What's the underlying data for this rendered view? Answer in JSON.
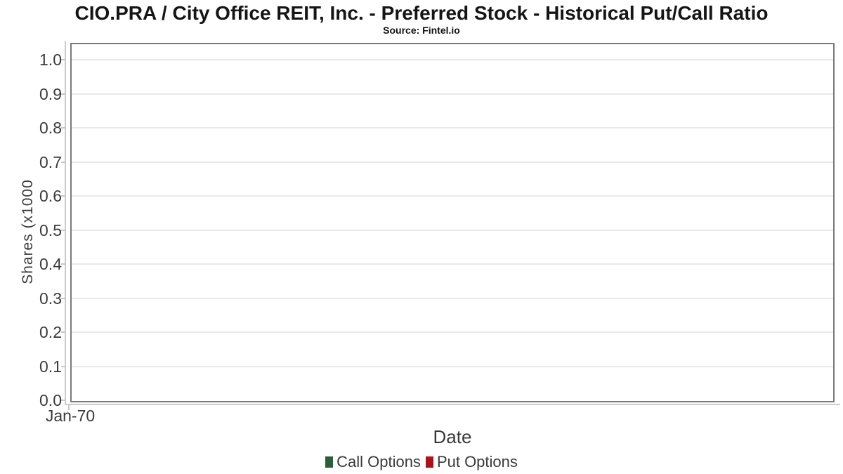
{
  "header": {
    "title": "CIO.PRA / City Office REIT, Inc. - Preferred Stock - Historical Put/Call Ratio",
    "subtitle": "Source: Fintel.io"
  },
  "chart_data": {
    "type": "line",
    "title": "CIO.PRA / City Office REIT, Inc. - Preferred Stock - Historical Put/Call Ratio",
    "subtitle": "Source: Fintel.io",
    "xlabel": "Date",
    "ylabel": "Shares (x1000",
    "ylim": [
      0.0,
      1.05
    ],
    "yticks": [
      0.0,
      0.1,
      0.2,
      0.3,
      0.4,
      0.5,
      0.6,
      0.7,
      0.8,
      0.9,
      1.0
    ],
    "ytick_labels": [
      "0.0",
      "0.1",
      "0.2",
      "0.3",
      "0.4",
      "0.5",
      "0.6",
      "0.7",
      "0.8",
      "0.9",
      "1.0"
    ],
    "xtick_labels": [
      "Jan-70"
    ],
    "grid": true,
    "legend_position": "bottom",
    "series": [
      {
        "name": "Call Options",
        "color": "#2a5f38",
        "values": []
      },
      {
        "name": "Put Options",
        "color": "#ae1116",
        "values": []
      }
    ]
  },
  "colors": {
    "call_options": "#2a5f38",
    "put_options": "#ae1116",
    "plot_border": "#7a7a7a",
    "gridline": "#e9e9e9",
    "axis_line": "#cccccc",
    "text": "#3a3a3a"
  }
}
